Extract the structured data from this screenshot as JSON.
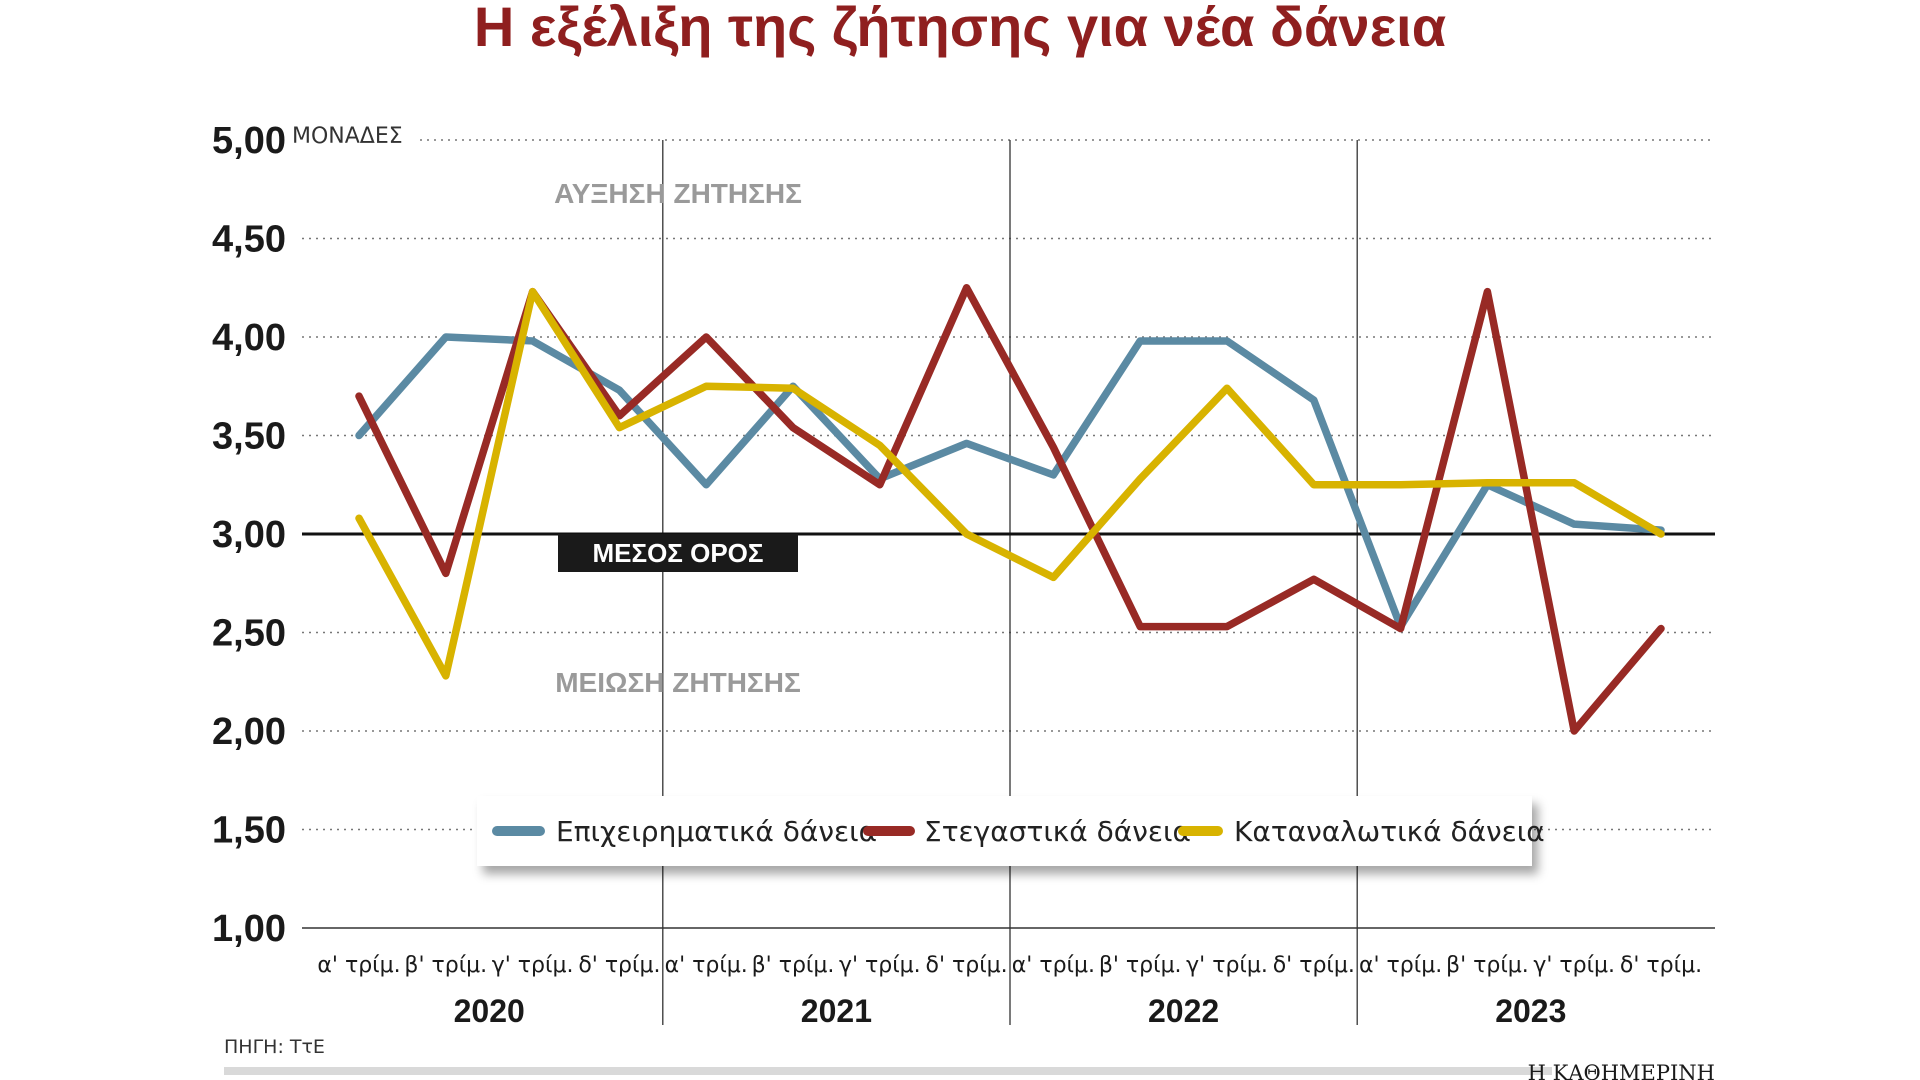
{
  "chart_data": {
    "type": "line",
    "title": "Η εξέλιξη της ζήτησης για νέα δάνεια",
    "ylabel": "ΜΟΝΑΔΕΣ",
    "ylim": [
      1.0,
      5.0
    ],
    "yticks": [
      {
        "value": 5.0,
        "label": "5,00"
      },
      {
        "value": 4.5,
        "label": "4,50"
      },
      {
        "value": 4.0,
        "label": "4,00"
      },
      {
        "value": 3.5,
        "label": "3,50"
      },
      {
        "value": 3.0,
        "label": "3,00"
      },
      {
        "value": 2.5,
        "label": "2,50"
      },
      {
        "value": 2.0,
        "label": "2,00"
      },
      {
        "value": 1.5,
        "label": "1,50"
      },
      {
        "value": 1.0,
        "label": "1,00"
      }
    ],
    "categories": [
      "α' τρίμ.",
      "β' τρίμ.",
      "γ' τρίμ.",
      "δ' τρίμ.",
      "α' τρίμ.",
      "β' τρίμ.",
      "γ' τρίμ.",
      "δ' τρίμ.",
      "α' τρίμ.",
      "β' τρίμ.",
      "γ' τρίμ.",
      "δ' τρίμ.",
      "α' τρίμ.",
      "β' τρίμ.",
      "γ' τρίμ.",
      "δ' τρίμ."
    ],
    "years": [
      "2020",
      "2021",
      "2022",
      "2023"
    ],
    "grid": true,
    "legend_position": "bottom-center",
    "series": [
      {
        "name": "Επιχειρηματικά δάνεια",
        "color": "#5b8aa3",
        "values": [
          3.5,
          4.0,
          3.98,
          3.73,
          3.25,
          3.75,
          3.28,
          3.46,
          3.3,
          3.98,
          3.98,
          3.68,
          2.53,
          3.25,
          3.05,
          3.02
        ]
      },
      {
        "name": "Στεγαστικά δάνεια",
        "color": "#982a25",
        "values": [
          3.7,
          2.8,
          4.23,
          3.6,
          4.0,
          3.54,
          3.25,
          4.25,
          3.44,
          2.53,
          2.53,
          2.77,
          2.52,
          4.23,
          2.0,
          2.52
        ]
      },
      {
        "name": "Καταναλωτικά δάνεια",
        "color": "#d8b300",
        "values": [
          3.08,
          2.28,
          4.23,
          3.54,
          3.75,
          3.74,
          3.45,
          3.0,
          2.78,
          3.28,
          3.74,
          3.25,
          3.25,
          3.26,
          3.26,
          3.0
        ]
      }
    ],
    "average": {
      "value": 3.0,
      "label": "ΜΕΣΟΣ ΟΡΟΣ"
    },
    "annotations": {
      "increase": "ΑΥΞΗΣΗ ΖΗΤΗΣΗΣ",
      "decrease": "ΜΕΙΩΣΗ ΖΗΤΗΣΗΣ"
    }
  },
  "footer": {
    "source": "ΠΗΓΗ: ΤτΕ",
    "brand": "Η ΚΑΘΗΜΕΡΙΝΗ"
  }
}
